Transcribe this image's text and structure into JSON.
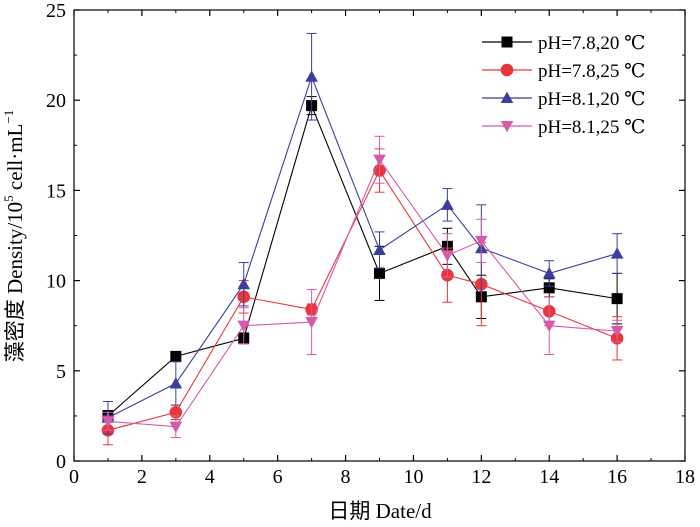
{
  "chart_data": {
    "type": "line",
    "title": "",
    "xlabel": "日期 Date/d",
    "ylabel": {
      "main": "藻密度 Density/10",
      "sup": "5",
      "unit": " cell·mL",
      "unit_sup": "−1"
    },
    "xlim": [
      0,
      18
    ],
    "ylim": [
      0,
      25
    ],
    "x_ticks": [
      "0",
      "2",
      "4",
      "6",
      "8",
      "10",
      "12",
      "14",
      "16",
      "18"
    ],
    "y_ticks": [
      "0",
      "5",
      "10",
      "15",
      "20",
      "25"
    ],
    "grid": false,
    "legend_position": "top-right",
    "x": [
      1,
      3,
      5,
      7,
      9,
      11,
      12,
      14,
      16
    ],
    "series": [
      {
        "name": "pH=7.8,20 ℃",
        "color": "#000000",
        "marker": "square",
        "values": [
          2.5,
          5.8,
          6.8,
          19.7,
          10.4,
          11.9,
          9.1,
          9.6,
          9.0
        ],
        "errors": [
          0.3,
          0.2,
          0.3,
          0.5,
          1.5,
          1.0,
          1.2,
          0.5,
          1.4
        ]
      },
      {
        "name": "pH=7.8,25 ℃",
        "color": "#e8363b",
        "marker": "circle",
        "values": [
          1.7,
          2.7,
          9.1,
          8.4,
          16.1,
          10.3,
          9.8,
          8.3,
          6.8
        ],
        "errors": [
          0.8,
          0.4,
          0.9,
          0.3,
          1.2,
          1.5,
          2.3,
          0.8,
          1.2
        ]
      },
      {
        "name": "pH=8.1,20 ℃",
        "color": "#3b3f9c",
        "marker": "triangle-up",
        "values": [
          2.4,
          4.3,
          9.8,
          21.3,
          11.7,
          14.2,
          11.8,
          10.4,
          11.5
        ],
        "errors": [
          0.9,
          1.2,
          1.2,
          2.4,
          1.0,
          0.9,
          2.4,
          0.7,
          1.1
        ]
      },
      {
        "name": "pH=8.1,25 ℃",
        "color": "#d55aa8",
        "marker": "triangle-down",
        "values": [
          2.2,
          1.9,
          7.5,
          7.7,
          16.7,
          11.4,
          12.2,
          7.5,
          7.2
        ],
        "errors": [
          0.5,
          0.6,
          1.0,
          1.8,
          1.3,
          1.2,
          1.2,
          1.6,
          0.6
        ]
      }
    ]
  }
}
